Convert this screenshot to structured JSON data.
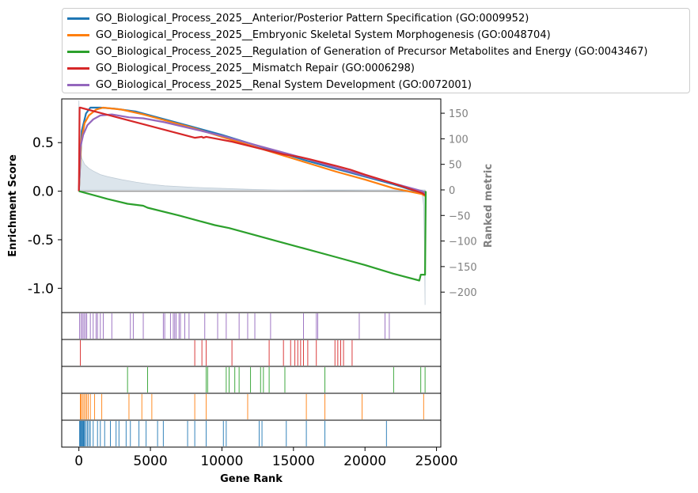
{
  "chart_data": {
    "type": "line",
    "xlabel": "Gene Rank",
    "ylabel": "Enrichment Score",
    "y2label": "Ranked metric",
    "xlim": [
      -1200,
      25300
    ],
    "ylim": [
      -1.25,
      0.95
    ],
    "y2lim": [
      -240,
      178
    ],
    "xticks": [
      0,
      5000,
      10000,
      15000,
      20000,
      25000
    ],
    "yticks": [
      0.5,
      0.0,
      -0.5,
      -1.0
    ],
    "ytick_labels": [
      "0.5",
      "0.0",
      "-0.5",
      "-1.0"
    ],
    "y2ticks": [
      150,
      100,
      50,
      0,
      -50,
      -100,
      -150,
      -200
    ],
    "y2tick_labels": [
      "150",
      "100",
      "50",
      "0",
      "−50",
      "−100",
      "−150",
      "−200"
    ],
    "legend_position": "top, outside plot",
    "series": [
      {
        "name": "GO_Biological_Process_2025__Anterior/Posterior Pattern Specification (GO:0009952)",
        "color": "#1f77b4",
        "x": [
          0,
          200,
          500,
          800,
          1500,
          2500,
          4000,
          6000,
          8000,
          10000,
          12000,
          14000,
          16000,
          18000,
          20000,
          22000,
          24000,
          24200
        ],
        "y": [
          0.0,
          0.62,
          0.8,
          0.86,
          0.86,
          0.85,
          0.82,
          0.74,
          0.66,
          0.58,
          0.49,
          0.4,
          0.31,
          0.23,
          0.15,
          0.07,
          -0.02,
          -0.04
        ],
        "hits": [
          50,
          100,
          150,
          200,
          250,
          300,
          350,
          400,
          500,
          600,
          700,
          800,
          1000,
          1300,
          1500,
          1800,
          2200,
          2600,
          2800,
          3300,
          3600,
          4200,
          4700,
          5500,
          5900,
          7600,
          8100,
          8900,
          10100,
          10300,
          12600,
          12800,
          14500,
          15900,
          17200,
          21500
        ]
      },
      {
        "name": "GO_Biological_Process_2025__Embryonic Skeletal System Morphogenesis (GO:0048704)",
        "color": "#ff7f0e",
        "x": [
          0,
          150,
          400,
          700,
          1200,
          1700,
          3000,
          4500,
          6000,
          8000,
          10000,
          12000,
          14000,
          16000,
          18000,
          20000,
          22000,
          24000,
          24200
        ],
        "y": [
          0.0,
          0.5,
          0.7,
          0.78,
          0.84,
          0.86,
          0.84,
          0.79,
          0.73,
          0.65,
          0.56,
          0.47,
          0.38,
          0.29,
          0.2,
          0.12,
          0.03,
          -0.03,
          -0.05
        ],
        "hits": [
          100,
          150,
          250,
          350,
          450,
          550,
          650,
          800,
          1100,
          1600,
          3500,
          4400,
          5100,
          8100,
          8900,
          11800,
          15900,
          17200,
          19800,
          24100
        ]
      },
      {
        "name": "GO_Biological_Process_2025__Regulation of Generation of Precursor Metabolites and Energy (GO:0043467)",
        "color": "#2ca02c",
        "x": [
          0,
          2000,
          3400,
          4500,
          4800,
          7000,
          9000,
          9500,
          10500,
          12000,
          14000,
          16000,
          18000,
          20000,
          22000,
          23800,
          23900,
          24200,
          24250
        ],
        "y": [
          0.0,
          -0.08,
          -0.13,
          -0.15,
          -0.17,
          -0.25,
          -0.33,
          -0.35,
          -0.38,
          -0.44,
          -0.52,
          -0.6,
          -0.68,
          -0.76,
          -0.85,
          -0.92,
          -0.86,
          -0.86,
          0.0
        ],
        "hits": [
          3400,
          4800,
          8900,
          9000,
          10300,
          10500,
          10900,
          11200,
          12000,
          12700,
          12900,
          13300,
          14400,
          17200,
          22000,
          23900,
          24200
        ]
      },
      {
        "name": "GO_Biological_Process_2025__Mismatch Repair (GO:0006298)",
        "color": "#d62728",
        "x": [
          0,
          50,
          100,
          8100,
          8600,
          8700,
          8900,
          10700,
          14300,
          15500,
          16100,
          18000,
          19000,
          20000,
          22000,
          24000,
          24200
        ],
        "y": [
          0.0,
          0.86,
          0.86,
          0.55,
          0.56,
          0.55,
          0.56,
          0.51,
          0.38,
          0.35,
          0.33,
          0.26,
          0.22,
          0.17,
          0.08,
          -0.02,
          -0.04
        ],
        "hits": [
          100,
          8100,
          8600,
          8900,
          10700,
          13300,
          14300,
          14800,
          15100,
          15300,
          15500,
          15700,
          16000,
          16600,
          17900,
          18100,
          18300,
          18500,
          19100
        ]
      },
      {
        "name": "GO_Biological_Process_2025__Renal System Development (GO:0072001)",
        "color": "#9467bd",
        "x": [
          0,
          100,
          300,
          600,
          1000,
          1500,
          2300,
          3500,
          4500,
          6000,
          8000,
          10000,
          12000,
          14000,
          16000,
          18000,
          20000,
          22000,
          24000,
          24200
        ],
        "y": [
          0.0,
          0.45,
          0.58,
          0.68,
          0.74,
          0.78,
          0.79,
          0.76,
          0.75,
          0.71,
          0.64,
          0.57,
          0.49,
          0.41,
          0.33,
          0.24,
          0.16,
          0.08,
          0.0,
          -0.02
        ],
        "hits": [
          50,
          150,
          250,
          350,
          450,
          550,
          800,
          1000,
          1200,
          1300,
          1500,
          1700,
          2300,
          3600,
          3800,
          4500,
          5900,
          6000,
          6400,
          6600,
          6700,
          6800,
          7000,
          7100,
          7400,
          7700,
          8800,
          9700,
          10300,
          11200,
          11800,
          12300,
          13400,
          15700,
          16600,
          16700,
          19600,
          21400,
          21700
        ]
      }
    ],
    "ranked_metric": {
      "color": "#6a8caf",
      "x": [
        0,
        50,
        100,
        200,
        400,
        700,
        1000,
        1500,
        2000,
        3000,
        4000,
        5000,
        6000,
        8000,
        10000,
        12000,
        14000,
        16000,
        18000,
        20000,
        22000,
        23000,
        23800,
        24000,
        24100,
        24150,
        24200
      ],
      "y": [
        175,
        95,
        78,
        62,
        50,
        42,
        37,
        30,
        26,
        20,
        15,
        11,
        8,
        5,
        3,
        1,
        0,
        -0.5,
        -1,
        -2,
        -3,
        -4,
        -6,
        -10,
        -30,
        -100,
        -225
      ]
    }
  }
}
